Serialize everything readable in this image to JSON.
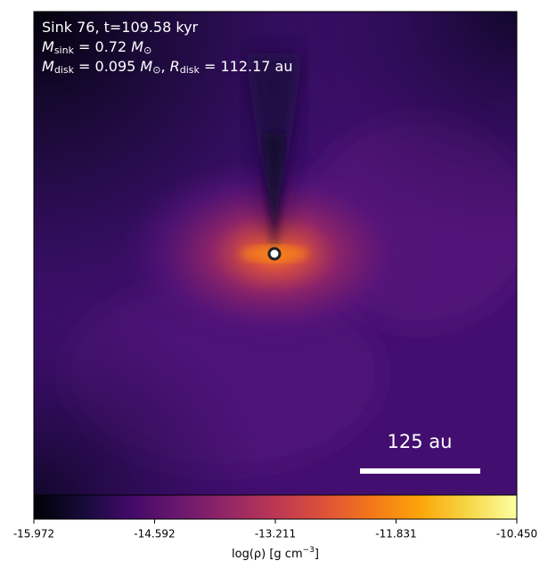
{
  "chart_data": {
    "type": "density-map",
    "annotation_lines": [
      [
        "Sink 76, t=109.58 kyr"
      ],
      [
        "M",
        "sink",
        " = 0.72 M",
        "⊙"
      ],
      [
        "M",
        "disk",
        " = 0.095 M",
        "⊙",
        ", R",
        "disk",
        " = 112.17 au"
      ]
    ],
    "scale_bar_label": "125 au",
    "colormap": "inferno",
    "clim": [
      -15.972,
      {
        "value": -10.45,
        "label": "-10.450"
      }
    ],
    "cticks": [
      -15.972,
      -14.592,
      -13.211,
      -11.831,
      {
        "value": -10.45,
        "label": "-10.450"
      }
    ],
    "colorbar_label": [
      "log(ρ) [g cm",
      "−3",
      "]"
    ]
  }
}
